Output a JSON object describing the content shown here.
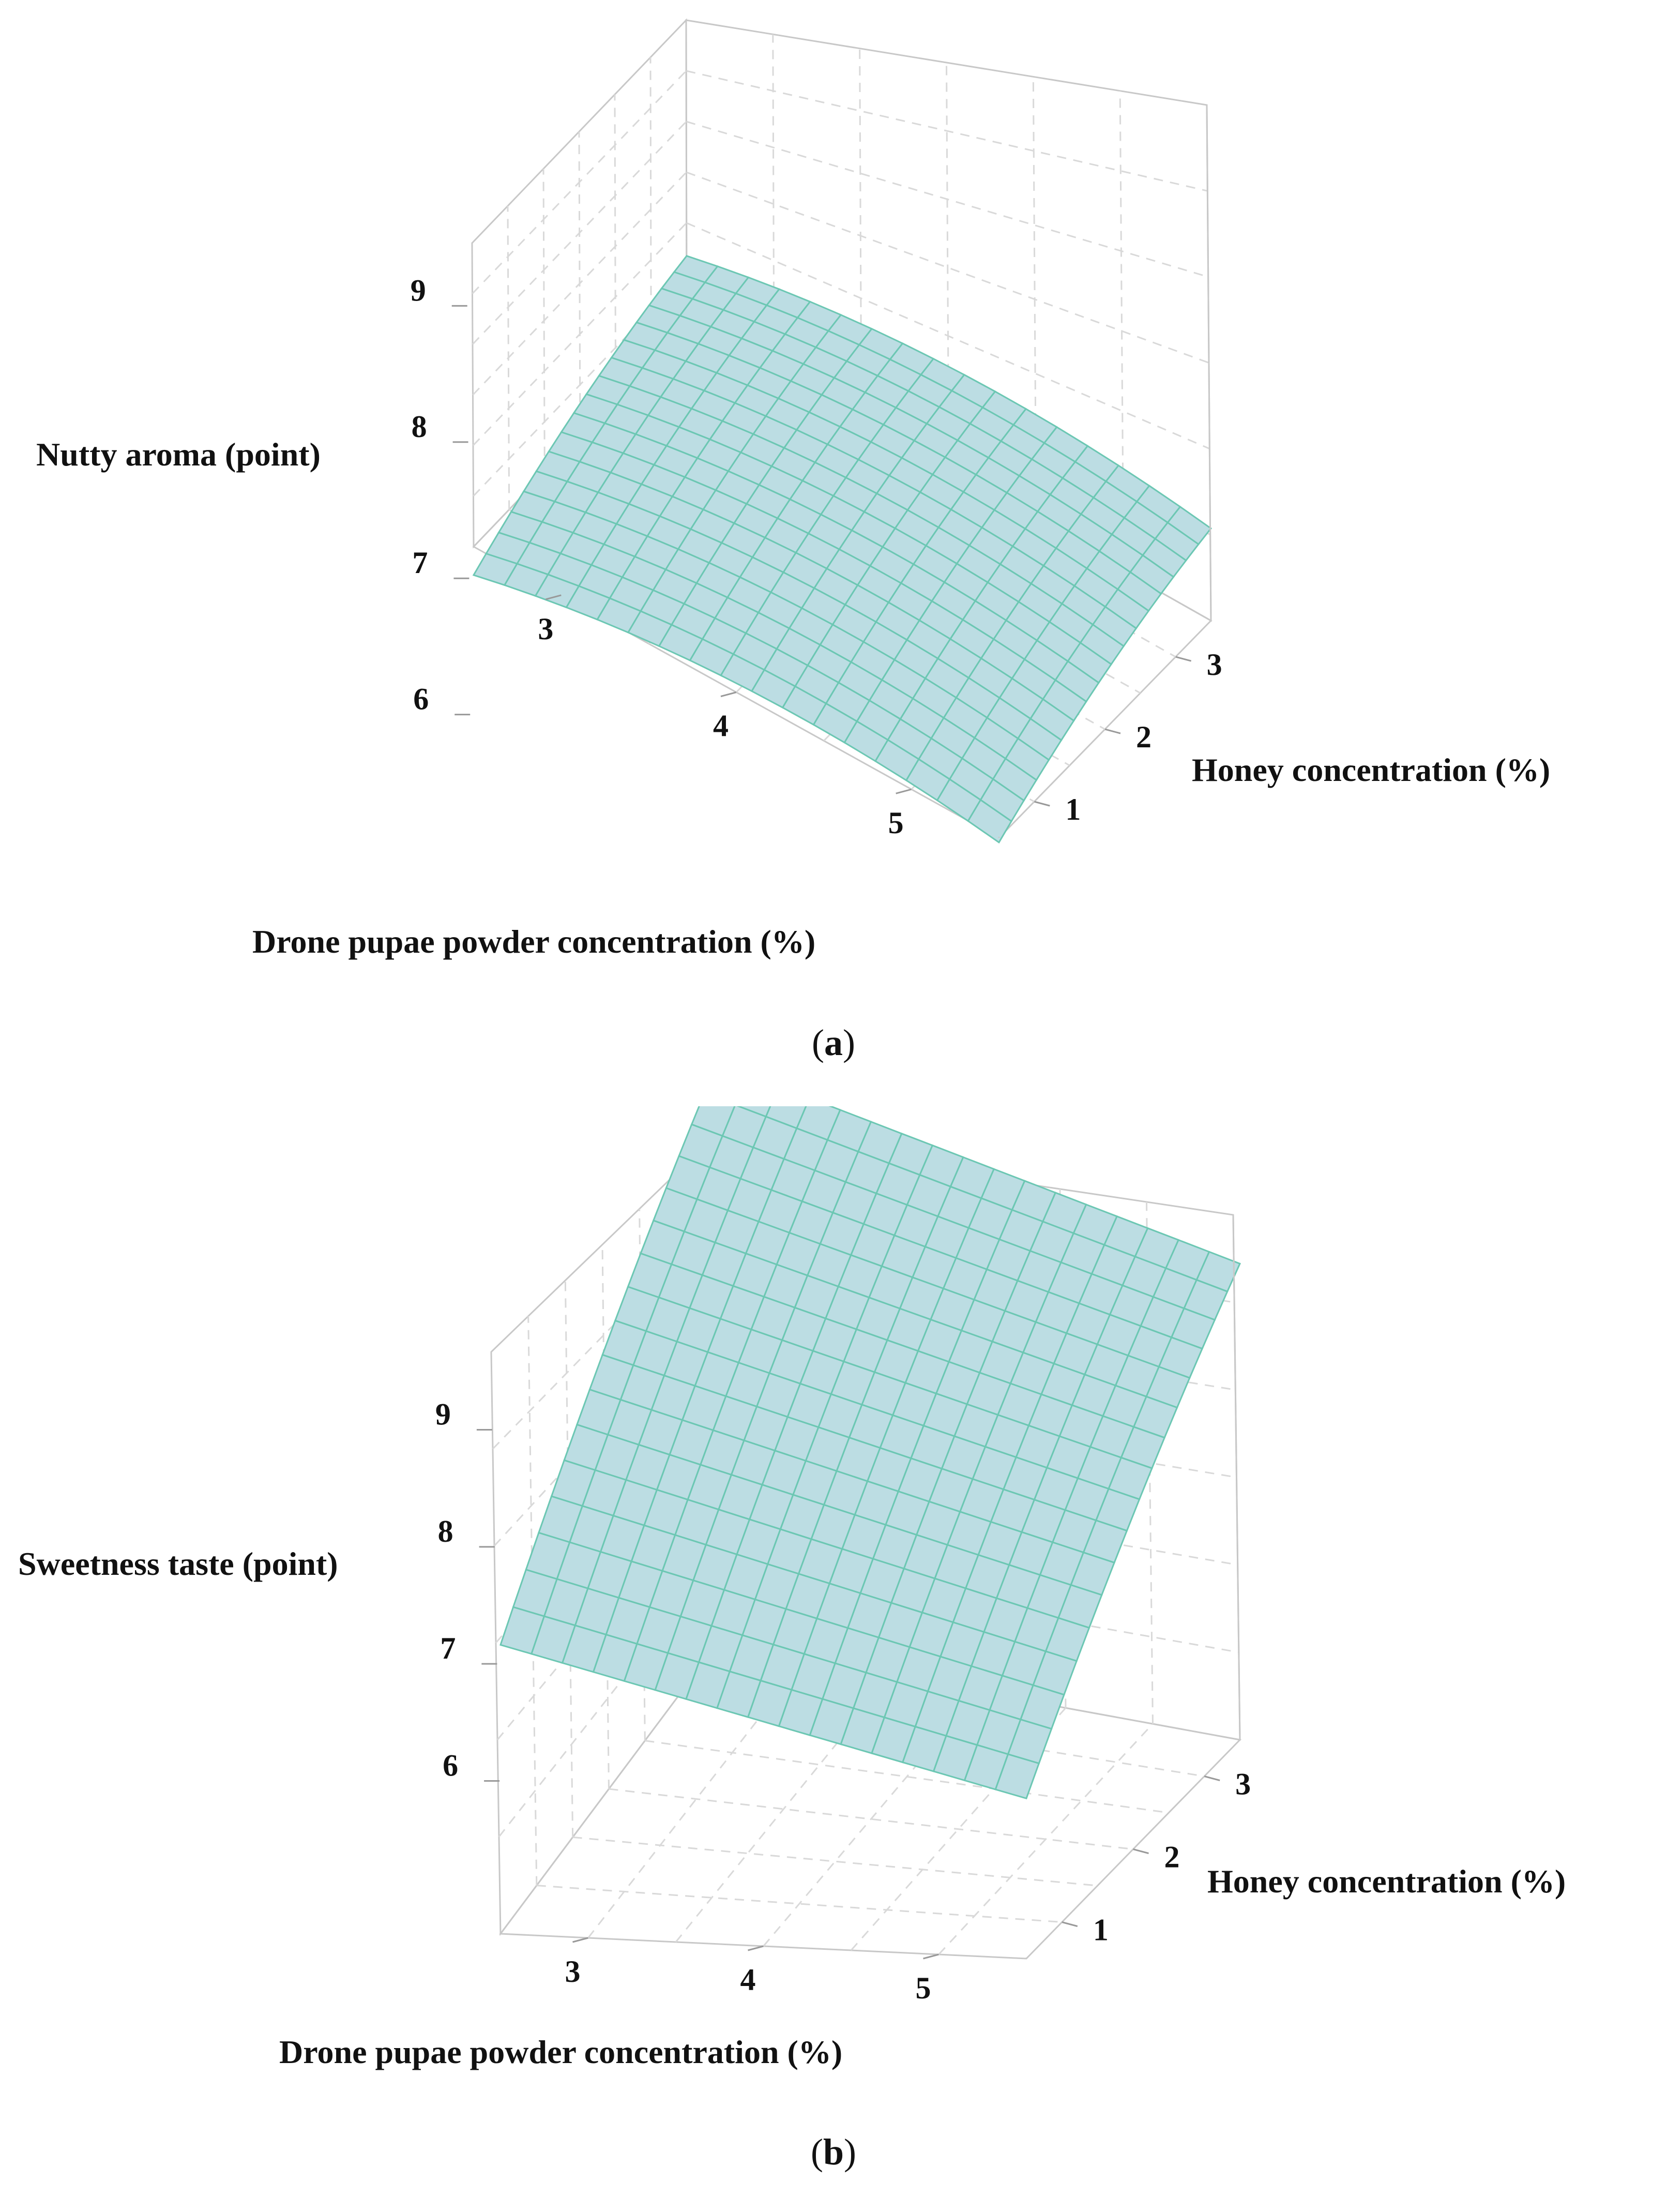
{
  "chart_data": [
    {
      "panel": "a",
      "type": "surface",
      "caption_letter": "a",
      "xlabel": "Drone pupae powder concentration (%)",
      "ylabel": "Honey concentration (%)",
      "zlabel": "Nutty aroma (point)",
      "x_ticks": [
        3,
        4,
        5
      ],
      "y_ticks": [
        1,
        2,
        3
      ],
      "z_ticks": [
        6,
        7,
        8,
        9
      ],
      "xlim": [
        2.5,
        5.5
      ],
      "ylim": [
        0.5,
        3.5
      ],
      "zlim": [
        5.6,
        9.4
      ],
      "grid": true,
      "surface_color": "#bcdde3",
      "mesh_color": "#6cc7b3",
      "corner_values": {
        "x_low_y_low": 7.4,
        "x_low_y_high": 7.9,
        "x_high_y_low": 7.5,
        "x_high_y_high": 8.0,
        "x_mid_y_high": 8.2
      }
    },
    {
      "panel": "b",
      "type": "surface",
      "caption_letter": "b",
      "xlabel": "Drone pupae powder concentration (%)",
      "ylabel": "Honey concentration (%)",
      "zlabel": "Sweetness taste (point)",
      "x_ticks": [
        3,
        4,
        5
      ],
      "y_ticks": [
        1,
        2,
        3
      ],
      "z_ticks": [
        6,
        7,
        8,
        9
      ],
      "xlim": [
        2.5,
        5.5
      ],
      "ylim": [
        0.5,
        3.5
      ],
      "zlim": [
        5.6,
        9.4
      ],
      "grid": true,
      "surface_color": "#bcdde3",
      "mesh_color": "#6cc7b3",
      "corner_values": {
        "x_low_y_low": 7.3,
        "x_low_y_high": 9.8,
        "x_high_y_low": 6.2,
        "x_high_y_high": 8.9
      }
    }
  ]
}
